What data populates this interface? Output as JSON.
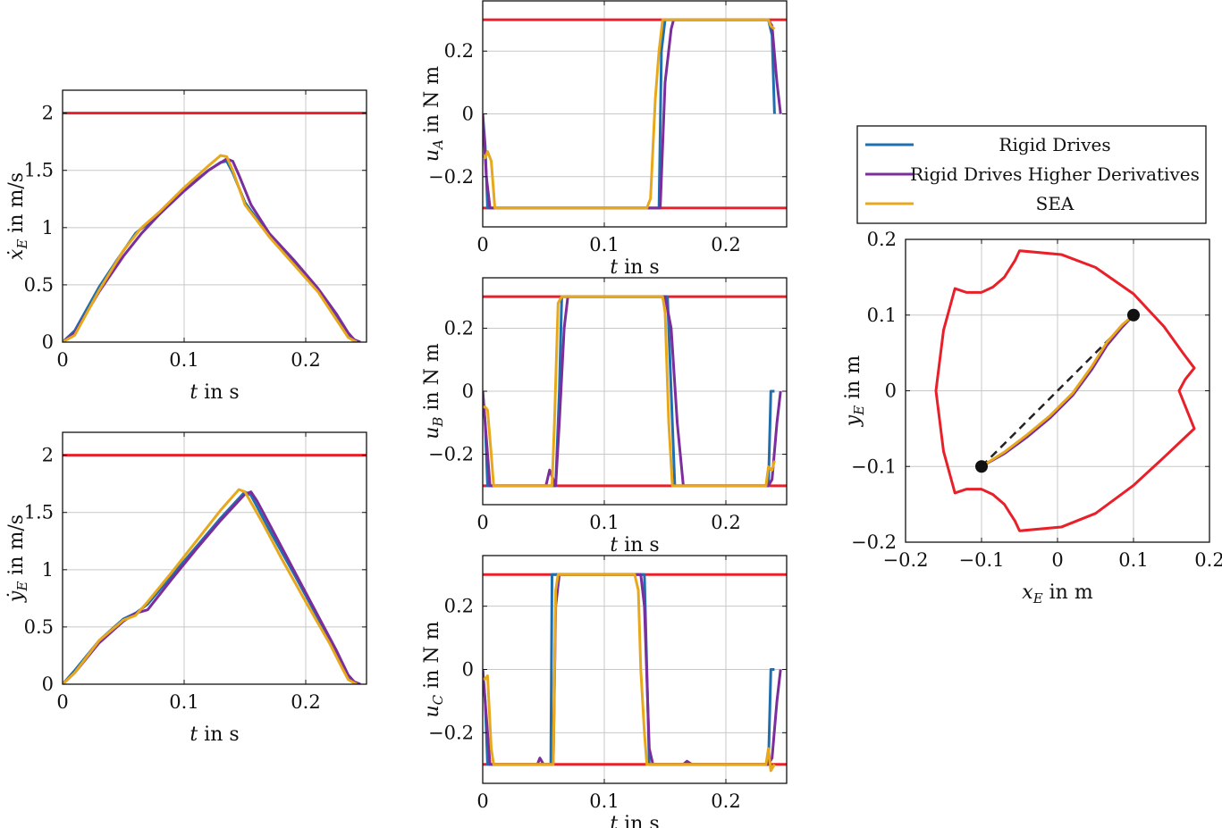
{
  "legend": {
    "entries": [
      {
        "name": "Rigid Drives",
        "color": "#1f6fae"
      },
      {
        "name": "Rigid Drives Higher Derivatives",
        "color": "#7b2d9c"
      },
      {
        "name": "SEA",
        "color": "#e8a81c"
      }
    ]
  },
  "colors": {
    "limit": "#e8202a",
    "rigid": "#1f6fae",
    "higher": "#7b2d9c",
    "sea": "#e8a81c",
    "grid": "#c8c8c8"
  },
  "chart_data": [
    {
      "id": "xdot",
      "type": "line",
      "xlabel": "t in s",
      "ylabel": "ẋ_E in m/s",
      "xlim": [
        0,
        0.25
      ],
      "ylim": [
        0,
        2.2
      ],
      "xticks": [
        "0",
        "0.1",
        "0.2"
      ],
      "yticks": [
        "0",
        "0.5",
        "1",
        "1.5",
        "2"
      ],
      "grid": true,
      "limits": [
        2
      ],
      "series": [
        {
          "name": "Rigid Drives",
          "x": [
            0,
            0.01,
            0.03,
            0.045,
            0.06,
            0.08,
            0.1,
            0.12,
            0.13,
            0.135,
            0.14,
            0.15,
            0.17,
            0.19,
            0.21,
            0.225,
            0.235,
            0.24,
            0.243
          ],
          "y": [
            0,
            0.1,
            0.48,
            0.72,
            0.95,
            1.12,
            1.33,
            1.5,
            1.57,
            1.58,
            1.48,
            1.22,
            0.93,
            0.7,
            0.45,
            0.22,
            0.05,
            0.01,
            0
          ]
        },
        {
          "name": "Rigid Drives Higher Derivatives",
          "x": [
            0,
            0.01,
            0.03,
            0.05,
            0.065,
            0.08,
            0.1,
            0.12,
            0.135,
            0.14,
            0.145,
            0.155,
            0.17,
            0.19,
            0.21,
            0.225,
            0.235,
            0.24,
            0.245
          ],
          "y": [
            0,
            0.08,
            0.44,
            0.75,
            0.95,
            1.12,
            1.32,
            1.5,
            1.6,
            1.58,
            1.46,
            1.2,
            0.95,
            0.72,
            0.47,
            0.25,
            0.08,
            0.02,
            0
          ]
        },
        {
          "name": "SEA",
          "x": [
            0,
            0.01,
            0.03,
            0.05,
            0.065,
            0.08,
            0.1,
            0.12,
            0.13,
            0.135,
            0.14,
            0.15,
            0.17,
            0.19,
            0.21,
            0.225,
            0.235,
            0.24,
            0.242
          ],
          "y": [
            0,
            0.06,
            0.45,
            0.8,
            1.0,
            1.14,
            1.35,
            1.54,
            1.63,
            1.62,
            1.5,
            1.2,
            0.92,
            0.68,
            0.44,
            0.2,
            0.04,
            0.01,
            0
          ]
        }
      ]
    },
    {
      "id": "ydot",
      "type": "line",
      "xlabel": "t in s",
      "ylabel": "ẏ_E in m/s",
      "xlim": [
        0,
        0.25
      ],
      "ylim": [
        0,
        2.2
      ],
      "xticks": [
        "0",
        "0.1",
        "0.2"
      ],
      "yticks": [
        "0",
        "0.5",
        "1",
        "1.5",
        "2"
      ],
      "grid": true,
      "limits": [
        2
      ],
      "series": [
        {
          "name": "Rigid Drives",
          "x": [
            0,
            0.01,
            0.03,
            0.05,
            0.06,
            0.07,
            0.09,
            0.11,
            0.13,
            0.15,
            0.155,
            0.17,
            0.19,
            0.21,
            0.225,
            0.235,
            0.24,
            0.243
          ],
          "y": [
            0,
            0.12,
            0.38,
            0.57,
            0.62,
            0.7,
            0.95,
            1.2,
            1.45,
            1.68,
            1.65,
            1.35,
            0.97,
            0.58,
            0.28,
            0.06,
            0.01,
            0
          ]
        },
        {
          "name": "Rigid Drives Higher Derivatives",
          "x": [
            0,
            0.01,
            0.03,
            0.05,
            0.06,
            0.07,
            0.09,
            0.11,
            0.13,
            0.15,
            0.155,
            0.16,
            0.175,
            0.19,
            0.21,
            0.225,
            0.235,
            0.24,
            0.245
          ],
          "y": [
            0,
            0.1,
            0.36,
            0.55,
            0.62,
            0.65,
            0.92,
            1.18,
            1.43,
            1.66,
            1.68,
            1.6,
            1.3,
            1.0,
            0.6,
            0.3,
            0.08,
            0.02,
            0
          ]
        },
        {
          "name": "SEA",
          "x": [
            0,
            0.01,
            0.03,
            0.05,
            0.06,
            0.07,
            0.09,
            0.11,
            0.13,
            0.145,
            0.15,
            0.165,
            0.18,
            0.2,
            0.22,
            0.23,
            0.235,
            0.24,
            0.242
          ],
          "y": [
            0,
            0.1,
            0.38,
            0.56,
            0.6,
            0.72,
            0.98,
            1.25,
            1.52,
            1.7,
            1.68,
            1.4,
            1.1,
            0.72,
            0.35,
            0.14,
            0.04,
            0.01,
            0
          ]
        }
      ]
    },
    {
      "id": "uA",
      "type": "line",
      "xlabel": "t in s",
      "ylabel": "u_A in N m",
      "xlim": [
        0,
        0.25
      ],
      "ylim": [
        -0.36,
        0.36
      ],
      "xticks": [
        "0",
        "0.1",
        "0.2"
      ],
      "yticks": [
        "−0.2",
        "0",
        "0.2"
      ],
      "grid": true,
      "limits": [
        0.3,
        -0.3
      ],
      "series": [
        {
          "name": "Rigid Drives",
          "x": [
            0,
            0.002,
            0.004,
            0.145,
            0.147,
            0.15,
            0.235,
            0.238,
            0.24
          ],
          "y": [
            0,
            -0.1,
            -0.3,
            -0.3,
            0.2,
            0.3,
            0.3,
            0.25,
            0
          ]
        },
        {
          "name": "Rigid Drives Higher Derivatives",
          "x": [
            0,
            0.003,
            0.006,
            0.142,
            0.146,
            0.15,
            0.155,
            0.157,
            0.235,
            0.238,
            0.242,
            0.245
          ],
          "y": [
            0,
            -0.2,
            -0.3,
            -0.3,
            -0.3,
            0.1,
            0.27,
            0.3,
            0.3,
            0.28,
            0.1,
            0
          ]
        },
        {
          "name": "SEA",
          "x": [
            0,
            0.002,
            0.004,
            0.007,
            0.01,
            0.135,
            0.138,
            0.142,
            0.145,
            0.148,
            0.235,
            0.237,
            0.24
          ],
          "y": [
            -0.13,
            -0.14,
            -0.12,
            -0.15,
            -0.3,
            -0.3,
            -0.27,
            0.05,
            0.2,
            0.3,
            0.3,
            0.28,
            0.27
          ]
        }
      ]
    },
    {
      "id": "uB",
      "type": "line",
      "xlabel": "t in s",
      "ylabel": "u_B in N m",
      "xlim": [
        0,
        0.25
      ],
      "ylim": [
        -0.36,
        0.36
      ],
      "xticks": [
        "0",
        "0.1",
        "0.2"
      ],
      "yticks": [
        "−0.2",
        "0",
        "0.2"
      ],
      "grid": true,
      "limits": [
        0.3,
        -0.3
      ],
      "series": [
        {
          "name": "Rigid Drives",
          "x": [
            0,
            0.002,
            0.004,
            0.058,
            0.06,
            0.063,
            0.065,
            0.15,
            0.152,
            0.155,
            0.158,
            0.235,
            0.237,
            0.24
          ],
          "y": [
            0,
            -0.1,
            -0.3,
            -0.3,
            -0.3,
            0.0,
            0.3,
            0.3,
            0.3,
            0.0,
            -0.3,
            -0.3,
            0,
            0
          ]
        },
        {
          "name": "Rigid Drives Higher Derivatives",
          "x": [
            0,
            0.003,
            0.006,
            0.05,
            0.052,
            0.055,
            0.06,
            0.063,
            0.067,
            0.07,
            0.15,
            0.155,
            0.16,
            0.165,
            0.235,
            0.238,
            0.242,
            0.245
          ],
          "y": [
            0,
            -0.15,
            -0.3,
            -0.3,
            -0.3,
            -0.25,
            -0.3,
            -0.1,
            0.2,
            0.3,
            0.3,
            0.2,
            -0.1,
            -0.3,
            -0.3,
            -0.28,
            -0.1,
            0
          ]
        },
        {
          "name": "SEA",
          "x": [
            0,
            0.002,
            0.004,
            0.007,
            0.009,
            0.057,
            0.059,
            0.062,
            0.065,
            0.148,
            0.15,
            0.153,
            0.156,
            0.233,
            0.235,
            0.238,
            0.24
          ],
          "y": [
            -0.05,
            -0.05,
            -0.06,
            -0.2,
            -0.3,
            -0.3,
            -0.1,
            0.28,
            0.3,
            0.3,
            0.25,
            -0.1,
            -0.3,
            -0.3,
            -0.24,
            -0.25,
            -0.22
          ]
        }
      ]
    },
    {
      "id": "uC",
      "type": "line",
      "xlabel": "t in s",
      "ylabel": "u_C in N m",
      "xlim": [
        0,
        0.25
      ],
      "ylim": [
        -0.36,
        0.36
      ],
      "xticks": [
        "0",
        "0.1",
        "0.2"
      ],
      "yticks": [
        "−0.2",
        "0",
        "0.2"
      ],
      "grid": true,
      "limits": [
        0.3,
        -0.3
      ],
      "series": [
        {
          "name": "Rigid Drives",
          "x": [
            0,
            0.002,
            0.004,
            0.056,
            0.057,
            0.06,
            0.133,
            0.135,
            0.137,
            0.14,
            0.235,
            0.237,
            0.24
          ],
          "y": [
            0,
            -0.1,
            -0.3,
            -0.3,
            0.3,
            0.3,
            0.3,
            0.0,
            -0.3,
            -0.3,
            -0.3,
            0,
            0
          ]
        },
        {
          "name": "Rigid Drives Higher Derivatives",
          "x": [
            0,
            0.003,
            0.006,
            0.045,
            0.047,
            0.05,
            0.058,
            0.06,
            0.063,
            0.13,
            0.133,
            0.137,
            0.14,
            0.145,
            0.165,
            0.168,
            0.172,
            0.235,
            0.238,
            0.242,
            0.245
          ],
          "y": [
            0,
            -0.15,
            -0.3,
            -0.3,
            -0.28,
            -0.3,
            -0.3,
            0.2,
            0.3,
            0.3,
            0.2,
            -0.25,
            -0.3,
            -0.3,
            -0.3,
            -0.29,
            -0.3,
            -0.3,
            -0.28,
            -0.1,
            0
          ]
        },
        {
          "name": "SEA",
          "x": [
            0,
            0.002,
            0.004,
            0.007,
            0.009,
            0.058,
            0.06,
            0.062,
            0.125,
            0.128,
            0.13,
            0.133,
            0.135,
            0.233,
            0.235,
            0.237,
            0.24
          ],
          "y": [
            -0.03,
            -0.03,
            -0.02,
            -0.25,
            -0.3,
            -0.3,
            0.25,
            0.3,
            0.3,
            0.25,
            0.0,
            -0.2,
            -0.3,
            -0.3,
            -0.25,
            -0.32,
            -0.3
          ]
        }
      ]
    },
    {
      "id": "workspace",
      "type": "line",
      "xlabel": "x_E in m",
      "ylabel": "y_E in m",
      "xlim": [
        -0.2,
        0.2
      ],
      "ylim": [
        -0.2,
        0.2
      ],
      "xticks": [
        "−0.2",
        "−0.1",
        "0",
        "0.1",
        "0.2"
      ],
      "yticks": [
        "−0.2",
        "−0.1",
        "0",
        "0.1",
        "0.2"
      ],
      "grid": true,
      "workspace_boundary": [
        [
          -0.05,
          0.185
        ],
        [
          0.005,
          0.18
        ],
        [
          0.05,
          0.163
        ],
        [
          0.1,
          0.128
        ],
        [
          0.14,
          0.085
        ],
        [
          0.165,
          0.05
        ],
        [
          0.18,
          0.03
        ],
        [
          0.168,
          0.015
        ],
        [
          0.16,
          0
        ],
        [
          0.168,
          -0.02
        ],
        [
          0.18,
          -0.05
        ],
        [
          0.14,
          -0.088
        ],
        [
          0.1,
          -0.125
        ],
        [
          0.05,
          -0.162
        ],
        [
          0.005,
          -0.18
        ],
        [
          -0.05,
          -0.185
        ],
        [
          -0.056,
          -0.172
        ],
        [
          -0.07,
          -0.15
        ],
        [
          -0.085,
          -0.137
        ],
        [
          -0.1,
          -0.13
        ],
        [
          -0.12,
          -0.13
        ],
        [
          -0.135,
          -0.135
        ],
        [
          -0.15,
          -0.08
        ],
        [
          -0.16,
          0
        ],
        [
          -0.15,
          0.08
        ],
        [
          -0.135,
          0.135
        ],
        [
          -0.12,
          0.13
        ],
        [
          -0.1,
          0.13
        ],
        [
          -0.085,
          0.137
        ],
        [
          -0.07,
          0.15
        ],
        [
          -0.056,
          0.172
        ],
        [
          -0.05,
          0.185
        ]
      ],
      "straight_path": [
        [
          -0.1,
          -0.1
        ],
        [
          0.1,
          0.1
        ]
      ],
      "endpoints": [
        [
          -0.1,
          -0.1
        ],
        [
          0.1,
          0.1
        ]
      ],
      "series": [
        {
          "name": "Rigid Drives",
          "x": [
            -0.1,
            -0.07,
            -0.04,
            -0.01,
            0.02,
            0.045,
            0.065,
            0.085,
            0.1
          ],
          "y": [
            -0.1,
            -0.082,
            -0.06,
            -0.035,
            -0.005,
            0.03,
            0.062,
            0.085,
            0.1
          ]
        },
        {
          "name": "Rigid Drives Higher Derivatives",
          "x": [
            -0.1,
            -0.07,
            -0.04,
            -0.01,
            0.02,
            0.045,
            0.065,
            0.085,
            0.1
          ],
          "y": [
            -0.1,
            -0.083,
            -0.061,
            -0.036,
            -0.006,
            0.028,
            0.06,
            0.084,
            0.1
          ]
        },
        {
          "name": "SEA",
          "x": [
            -0.1,
            -0.07,
            -0.04,
            -0.01,
            0.02,
            0.045,
            0.065,
            0.085,
            0.1
          ],
          "y": [
            -0.1,
            -0.081,
            -0.058,
            -0.033,
            -0.003,
            0.032,
            0.064,
            0.087,
            0.1
          ]
        }
      ]
    }
  ]
}
